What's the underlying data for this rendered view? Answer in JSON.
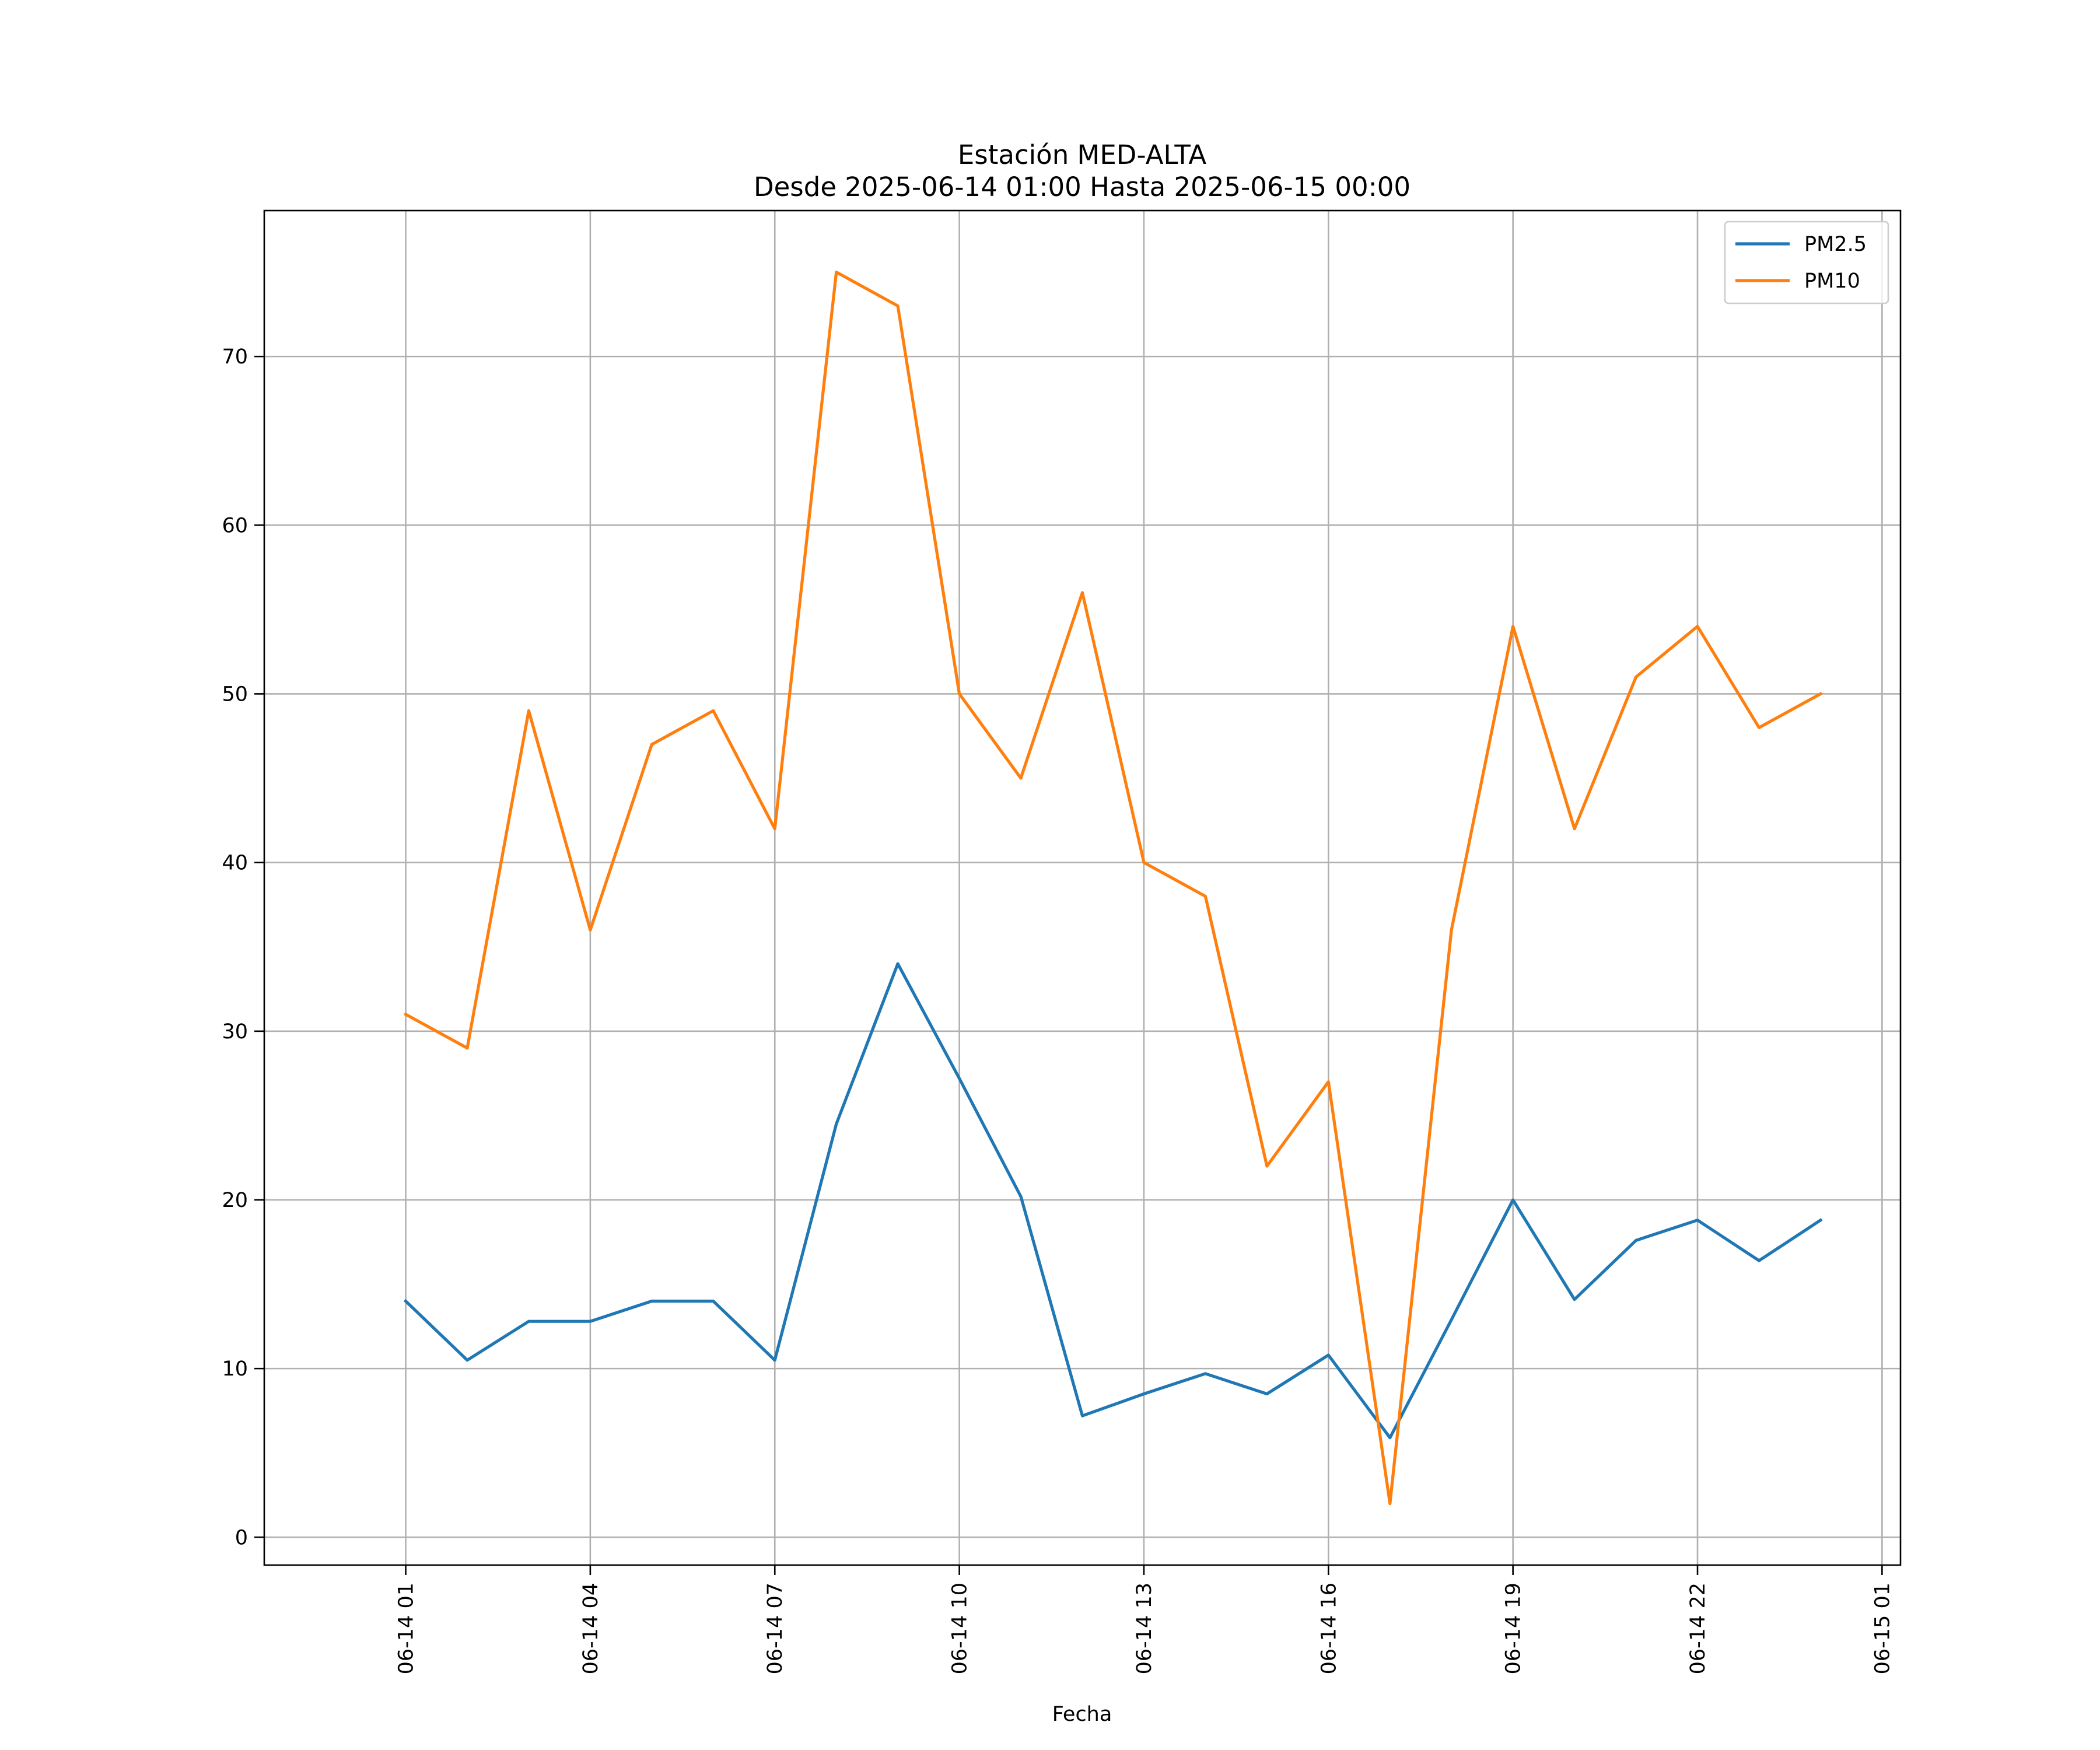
{
  "chart_data": {
    "type": "line",
    "title": "Estación MED-ALTA",
    "subtitle": "Desde 2025-06-14 01:00 Hasta 2025-06-15 00:00",
    "xlabel": "Fecha",
    "ylabel": "",
    "x": [
      "2025-06-14 01:00",
      "2025-06-14 02:00",
      "2025-06-14 03:00",
      "2025-06-14 04:00",
      "2025-06-14 05:00",
      "2025-06-14 06:00",
      "2025-06-14 07:00",
      "2025-06-14 08:00",
      "2025-06-14 09:00",
      "2025-06-14 10:00",
      "2025-06-14 11:00",
      "2025-06-14 12:00",
      "2025-06-14 13:00",
      "2025-06-14 14:00",
      "2025-06-14 15:00",
      "2025-06-14 16:00",
      "2025-06-14 17:00",
      "2025-06-14 18:00",
      "2025-06-14 19:00",
      "2025-06-14 20:00",
      "2025-06-14 21:00",
      "2025-06-14 22:00",
      "2025-06-14 23:00",
      "2025-06-15 00:00"
    ],
    "series": [
      {
        "name": "PM2.5",
        "color": "#1f77b4",
        "values": [
          14,
          10.5,
          12.8,
          12.8,
          14,
          14,
          10.5,
          24.5,
          34,
          27.2,
          20.2,
          7.2,
          8.5,
          9.7,
          8.5,
          10.8,
          5.9,
          12.9,
          20,
          14.1,
          17.6,
          18.8,
          16.4,
          18.8
        ]
      },
      {
        "name": "PM10",
        "color": "#ff7f0e",
        "values": [
          31,
          29,
          49,
          36,
          47,
          49,
          42,
          75,
          73,
          50,
          45,
          56,
          40,
          38,
          22,
          27,
          2,
          36,
          54,
          42,
          51,
          54,
          48,
          50
        ]
      }
    ],
    "x_ticks": [
      "06-14 01",
      "06-14 04",
      "06-14 07",
      "06-14 10",
      "06-14 13",
      "06-14 16",
      "06-14 19",
      "06-14 22",
      "06-15 01"
    ],
    "y_ticks": [
      "0",
      "10",
      "20",
      "30",
      "40",
      "50",
      "60",
      "70"
    ],
    "xlim": [
      "2025-06-13 22:42",
      "2025-06-15 01:18"
    ],
    "ylim": [
      -1.65,
      78.65
    ],
    "grid": true,
    "legend_position": "top-right"
  }
}
